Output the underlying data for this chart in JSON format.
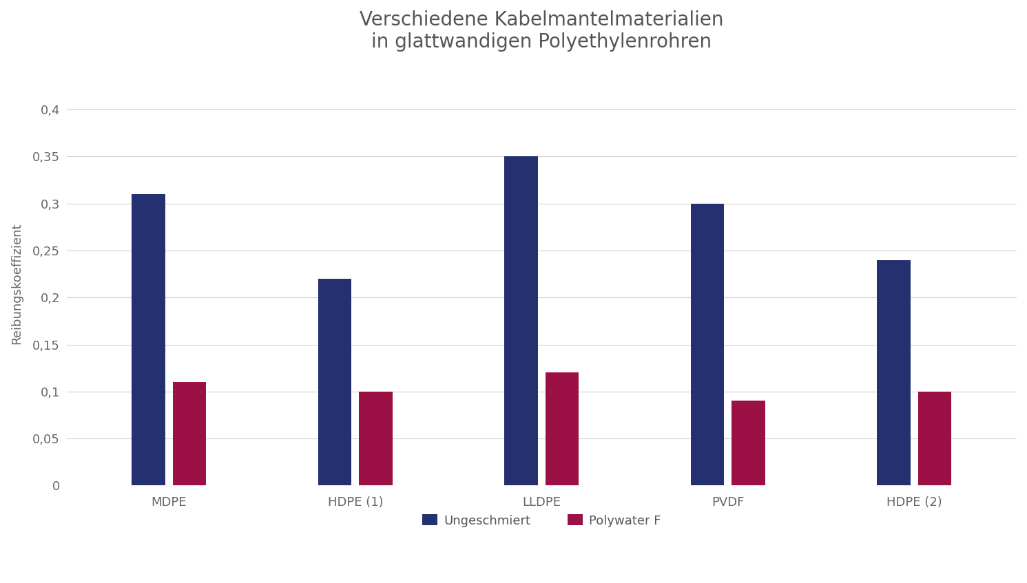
{
  "title": "Verschiedene Kabelmantelmaterialien\nin glattwandigen Polyethylenrohren",
  "ylabel": "Reibungskoeffizient",
  "categories": [
    "MDPE",
    "HDPE (1)",
    "LLDPE",
    "PVDF",
    "HDPE (2)"
  ],
  "series": [
    {
      "label": "Ungeschmiert",
      "values": [
        0.31,
        0.22,
        0.35,
        0.3,
        0.24
      ],
      "color": "#253070"
    },
    {
      "label": "Polywater F",
      "values": [
        0.11,
        0.1,
        0.12,
        0.09,
        0.1
      ],
      "color": "#9B1045"
    }
  ],
  "ylim": [
    0,
    0.43
  ],
  "yticks": [
    0,
    0.05,
    0.1,
    0.15,
    0.2,
    0.25,
    0.3,
    0.35,
    0.4
  ],
  "ytick_labels": [
    "0",
    "0,05",
    "0,1",
    "0,15",
    "0,2",
    "0,25",
    "0,3",
    "0,35",
    "0,4"
  ],
  "background_color": "#ffffff",
  "grid_color": "#d0d0d0",
  "title_fontsize": 20,
  "label_fontsize": 13,
  "tick_fontsize": 13,
  "legend_fontsize": 13,
  "bar_width": 0.18,
  "bar_gap": 0.04,
  "group_positions": [
    0,
    1,
    2,
    3,
    4
  ]
}
